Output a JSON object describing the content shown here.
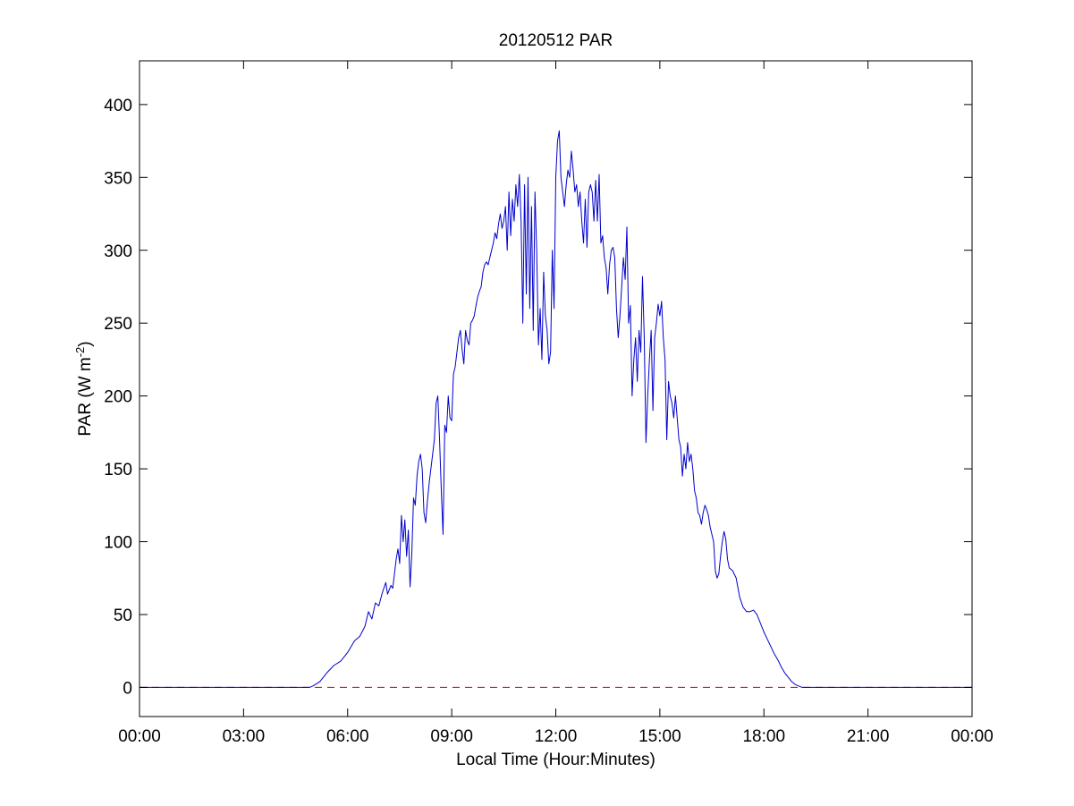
{
  "chart_data": {
    "type": "line",
    "title": "20120512 PAR",
    "xlabel": "Local Time (Hour:Minutes)",
    "ylabel": {
      "main": "PAR (W m",
      "sup": "-2",
      "close": ")"
    },
    "x_unit": "hours",
    "xlim": [
      0,
      24
    ],
    "ylim": [
      -20,
      430
    ],
    "x_ticks": [
      {
        "value": 0,
        "label": "00:00"
      },
      {
        "value": 3,
        "label": "03:00"
      },
      {
        "value": 6,
        "label": "06:00"
      },
      {
        "value": 9,
        "label": "09:00"
      },
      {
        "value": 12,
        "label": "12:00"
      },
      {
        "value": 15,
        "label": "15:00"
      },
      {
        "value": 18,
        "label": "18:00"
      },
      {
        "value": 21,
        "label": "21:00"
      },
      {
        "value": 24,
        "label": "00:00"
      }
    ],
    "y_ticks": [
      {
        "value": 0,
        "label": "0"
      },
      {
        "value": 50,
        "label": "50"
      },
      {
        "value": 100,
        "label": "100"
      },
      {
        "value": 150,
        "label": "150"
      },
      {
        "value": 200,
        "label": "200"
      },
      {
        "value": 250,
        "label": "250"
      },
      {
        "value": 300,
        "label": "300"
      },
      {
        "value": 350,
        "label": "350"
      },
      {
        "value": 400,
        "label": "400"
      }
    ],
    "grid": false,
    "legend": "none",
    "reference_line": {
      "y": 0,
      "color": "#cc0000",
      "style": "dashed"
    },
    "series": [
      {
        "color": "#0000cc",
        "points": [
          [
            0,
            0
          ],
          [
            4.9,
            0
          ],
          [
            5.0,
            1
          ],
          [
            5.2,
            4
          ],
          [
            5.4,
            10
          ],
          [
            5.6,
            15
          ],
          [
            5.8,
            18
          ],
          [
            6.0,
            24
          ],
          [
            6.2,
            32
          ],
          [
            6.35,
            35
          ],
          [
            6.5,
            42
          ],
          [
            6.6,
            52
          ],
          [
            6.7,
            47
          ],
          [
            6.8,
            58
          ],
          [
            6.9,
            56
          ],
          [
            7.0,
            65
          ],
          [
            7.1,
            72
          ],
          [
            7.15,
            64
          ],
          [
            7.25,
            70
          ],
          [
            7.3,
            68
          ],
          [
            7.4,
            88
          ],
          [
            7.45,
            95
          ],
          [
            7.5,
            85
          ],
          [
            7.55,
            118
          ],
          [
            7.6,
            100
          ],
          [
            7.65,
            115
          ],
          [
            7.7,
            90
          ],
          [
            7.75,
            108
          ],
          [
            7.8,
            69
          ],
          [
            7.85,
            92
          ],
          [
            7.9,
            130
          ],
          [
            7.95,
            125
          ],
          [
            8.0,
            145
          ],
          [
            8.05,
            155
          ],
          [
            8.1,
            160
          ],
          [
            8.15,
            150
          ],
          [
            8.2,
            120
          ],
          [
            8.25,
            113
          ],
          [
            8.3,
            128
          ],
          [
            8.35,
            140
          ],
          [
            8.4,
            150
          ],
          [
            8.45,
            160
          ],
          [
            8.5,
            170
          ],
          [
            8.55,
            195
          ],
          [
            8.6,
            200
          ],
          [
            8.65,
            170
          ],
          [
            8.7,
            135
          ],
          [
            8.75,
            105
          ],
          [
            8.8,
            180
          ],
          [
            8.85,
            175
          ],
          [
            8.9,
            200
          ],
          [
            8.95,
            185
          ],
          [
            9.0,
            183
          ],
          [
            9.05,
            215
          ],
          [
            9.1,
            220
          ],
          [
            9.15,
            230
          ],
          [
            9.2,
            240
          ],
          [
            9.25,
            245
          ],
          [
            9.3,
            232
          ],
          [
            9.35,
            222
          ],
          [
            9.4,
            245
          ],
          [
            9.45,
            238
          ],
          [
            9.5,
            235
          ],
          [
            9.55,
            250
          ],
          [
            9.6,
            252
          ],
          [
            9.65,
            255
          ],
          [
            9.7,
            262
          ],
          [
            9.75,
            268
          ],
          [
            9.8,
            272
          ],
          [
            9.85,
            275
          ],
          [
            9.9,
            285
          ],
          [
            9.95,
            290
          ],
          [
            10.0,
            292
          ],
          [
            10.05,
            290
          ],
          [
            10.1,
            295
          ],
          [
            10.15,
            300
          ],
          [
            10.2,
            305
          ],
          [
            10.25,
            312
          ],
          [
            10.3,
            308
          ],
          [
            10.35,
            318
          ],
          [
            10.4,
            325
          ],
          [
            10.45,
            315
          ],
          [
            10.5,
            320
          ],
          [
            10.55,
            330
          ],
          [
            10.6,
            300
          ],
          [
            10.65,
            340
          ],
          [
            10.7,
            310
          ],
          [
            10.75,
            335
          ],
          [
            10.8,
            320
          ],
          [
            10.85,
            345
          ],
          [
            10.9,
            330
          ],
          [
            10.95,
            352
          ],
          [
            11.0,
            320
          ],
          [
            11.05,
            250
          ],
          [
            11.1,
            345
          ],
          [
            11.15,
            270
          ],
          [
            11.2,
            350
          ],
          [
            11.25,
            260
          ],
          [
            11.3,
            330
          ],
          [
            11.35,
            245
          ],
          [
            11.4,
            340
          ],
          [
            11.45,
            300
          ],
          [
            11.5,
            235
          ],
          [
            11.55,
            260
          ],
          [
            11.6,
            225
          ],
          [
            11.65,
            285
          ],
          [
            11.7,
            255
          ],
          [
            11.75,
            245
          ],
          [
            11.8,
            222
          ],
          [
            11.85,
            230
          ],
          [
            11.9,
            300
          ],
          [
            11.95,
            260
          ],
          [
            12.0,
            350
          ],
          [
            12.05,
            375
          ],
          [
            12.1,
            382
          ],
          [
            12.15,
            350
          ],
          [
            12.2,
            340
          ],
          [
            12.25,
            330
          ],
          [
            12.3,
            345
          ],
          [
            12.35,
            355
          ],
          [
            12.4,
            350
          ],
          [
            12.45,
            368
          ],
          [
            12.5,
            355
          ],
          [
            12.55,
            340
          ],
          [
            12.6,
            345
          ],
          [
            12.65,
            330
          ],
          [
            12.7,
            340
          ],
          [
            12.75,
            320
          ],
          [
            12.8,
            305
          ],
          [
            12.85,
            335
          ],
          [
            12.9,
            302
          ],
          [
            12.95,
            340
          ],
          [
            13.0,
            345
          ],
          [
            13.05,
            340
          ],
          [
            13.1,
            320
          ],
          [
            13.15,
            348
          ],
          [
            13.2,
            320
          ],
          [
            13.25,
            352
          ],
          [
            13.3,
            305
          ],
          [
            13.35,
            310
          ],
          [
            13.4,
            295
          ],
          [
            13.45,
            288
          ],
          [
            13.5,
            270
          ],
          [
            13.55,
            290
          ],
          [
            13.6,
            300
          ],
          [
            13.65,
            302
          ],
          [
            13.7,
            295
          ],
          [
            13.75,
            260
          ],
          [
            13.8,
            240
          ],
          [
            13.85,
            255
          ],
          [
            13.9,
            275
          ],
          [
            13.95,
            295
          ],
          [
            14.0,
            280
          ],
          [
            14.05,
            316
          ],
          [
            14.1,
            250
          ],
          [
            14.15,
            262
          ],
          [
            14.2,
            200
          ],
          [
            14.25,
            225
          ],
          [
            14.3,
            240
          ],
          [
            14.35,
            210
          ],
          [
            14.4,
            245
          ],
          [
            14.45,
            230
          ],
          [
            14.5,
            282
          ],
          [
            14.55,
            240
          ],
          [
            14.6,
            168
          ],
          [
            14.65,
            200
          ],
          [
            14.7,
            225
          ],
          [
            14.75,
            245
          ],
          [
            14.8,
            190
          ],
          [
            14.85,
            240
          ],
          [
            14.9,
            250
          ],
          [
            14.95,
            263
          ],
          [
            15.0,
            255
          ],
          [
            15.05,
            265
          ],
          [
            15.1,
            240
          ],
          [
            15.15,
            225
          ],
          [
            15.2,
            170
          ],
          [
            15.25,
            210
          ],
          [
            15.3,
            200
          ],
          [
            15.35,
            195
          ],
          [
            15.4,
            185
          ],
          [
            15.45,
            200
          ],
          [
            15.5,
            185
          ],
          [
            15.55,
            170
          ],
          [
            15.6,
            165
          ],
          [
            15.65,
            145
          ],
          [
            15.7,
            160
          ],
          [
            15.75,
            150
          ],
          [
            15.8,
            168
          ],
          [
            15.85,
            155
          ],
          [
            15.9,
            160
          ],
          [
            15.95,
            150
          ],
          [
            16.0,
            135
          ],
          [
            16.05,
            130
          ],
          [
            16.1,
            120
          ],
          [
            16.15,
            118
          ],
          [
            16.2,
            112
          ],
          [
            16.25,
            120
          ],
          [
            16.3,
            125
          ],
          [
            16.35,
            122
          ],
          [
            16.4,
            118
          ],
          [
            16.45,
            110
          ],
          [
            16.5,
            105
          ],
          [
            16.55,
            100
          ],
          [
            16.6,
            80
          ],
          [
            16.65,
            75
          ],
          [
            16.7,
            78
          ],
          [
            16.75,
            90
          ],
          [
            16.8,
            100
          ],
          [
            16.85,
            107
          ],
          [
            16.9,
            102
          ],
          [
            16.95,
            88
          ],
          [
            17.0,
            82
          ],
          [
            17.1,
            80
          ],
          [
            17.2,
            75
          ],
          [
            17.3,
            62
          ],
          [
            17.4,
            55
          ],
          [
            17.5,
            52
          ],
          [
            17.6,
            52
          ],
          [
            17.7,
            53
          ],
          [
            17.8,
            50
          ],
          [
            17.9,
            44
          ],
          [
            18.0,
            38
          ],
          [
            18.1,
            33
          ],
          [
            18.2,
            28
          ],
          [
            18.3,
            23
          ],
          [
            18.4,
            19
          ],
          [
            18.5,
            14
          ],
          [
            18.6,
            10
          ],
          [
            18.7,
            7
          ],
          [
            18.8,
            4
          ],
          [
            18.9,
            2
          ],
          [
            19.0,
            1
          ],
          [
            19.1,
            0
          ],
          [
            24,
            0
          ]
        ]
      }
    ]
  }
}
